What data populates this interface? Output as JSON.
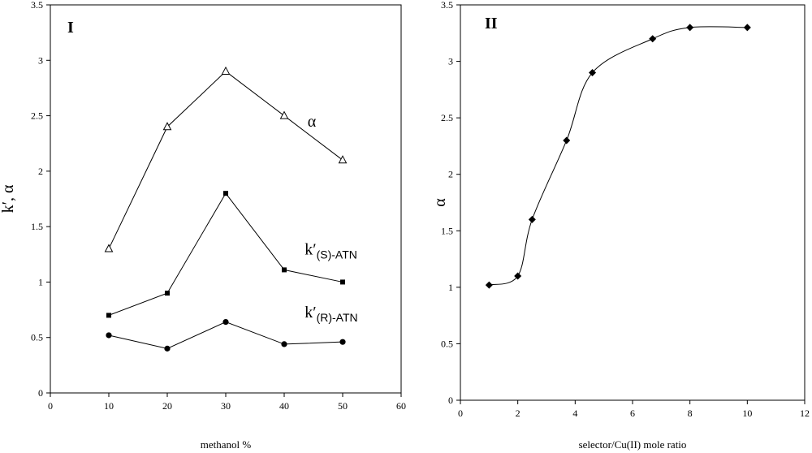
{
  "chart_data": [
    {
      "type": "line",
      "panel_label": "I",
      "xlabel": "methanol %",
      "ylabel": "k′, α",
      "xlim": [
        0,
        60
      ],
      "ylim": [
        0,
        3.5
      ],
      "xticks": [
        0,
        10,
        20,
        30,
        40,
        50,
        60
      ],
      "yticks": [
        0,
        0.5,
        1,
        1.5,
        2,
        2.5,
        3,
        3.5
      ],
      "x": [
        10,
        20,
        30,
        40,
        50
      ],
      "series": [
        {
          "name": "α",
          "marker": "triangle-open",
          "values": [
            1.3,
            2.4,
            2.9,
            2.5,
            2.1
          ]
        },
        {
          "name": "k′(S)-ATN",
          "marker": "square",
          "values": [
            0.7,
            0.9,
            1.8,
            1.11,
            1.0
          ]
        },
        {
          "name": "k′(R)-ATN",
          "marker": "circle",
          "values": [
            0.52,
            0.4,
            0.64,
            0.44,
            0.46
          ]
        }
      ],
      "annotations": [
        {
          "main": "α",
          "sub": "",
          "suffix": "",
          "x": 44,
          "y": 2.4
        },
        {
          "main": "k′",
          "sub": "(S)",
          "suffix": "-ATN",
          "x": 43.5,
          "y": 1.25
        },
        {
          "main": "k′",
          "sub": "(R)",
          "suffix": "-ATN",
          "x": 43.5,
          "y": 0.68
        }
      ],
      "grid": false
    },
    {
      "type": "line",
      "panel_label": "II",
      "xlabel": "selector/Cu(II) mole ratio",
      "ylabel": "α",
      "xlim": [
        0,
        12
      ],
      "ylim": [
        0,
        3.5
      ],
      "xticks": [
        0,
        2,
        4,
        6,
        8,
        10,
        12
      ],
      "yticks": [
        0,
        0.5,
        1,
        1.5,
        2,
        2.5,
        3,
        3.5
      ],
      "series": [
        {
          "name": "",
          "marker": "diamond",
          "smooth": true,
          "x": [
            1,
            2,
            2.5,
            3.7,
            4.6,
            6.7,
            8,
            10
          ],
          "values": [
            1.02,
            1.1,
            1.6,
            2.3,
            2.9,
            3.2,
            3.3,
            3.3
          ]
        }
      ],
      "grid": false
    }
  ]
}
